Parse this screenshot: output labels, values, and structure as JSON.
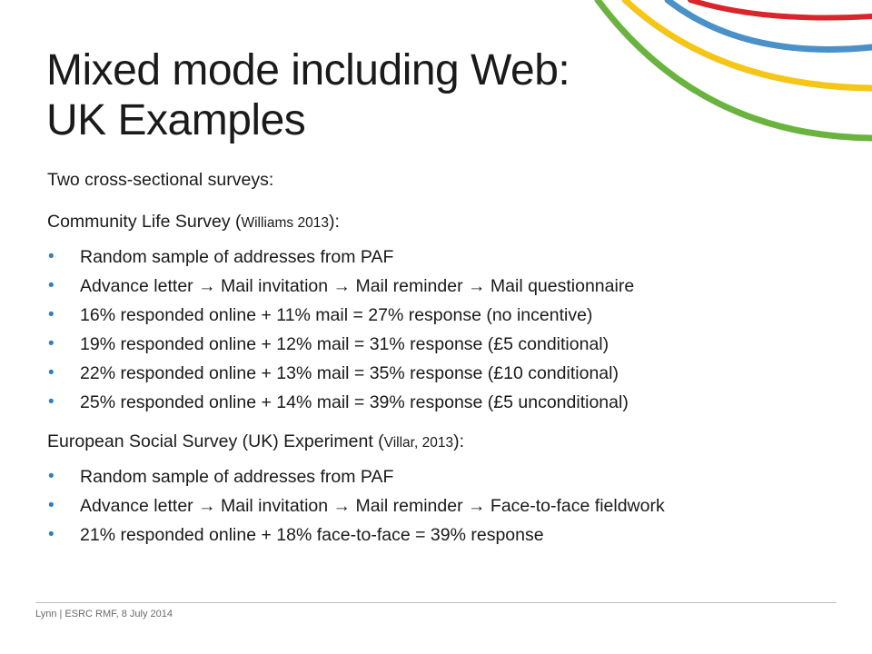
{
  "slide": {
    "title_line1": "Mixed mode including Web:",
    "title_line2": "UK Examples",
    "intro": "Two cross-sectional surveys:",
    "sections": [
      {
        "heading": "Community Life Survey (",
        "citation": "Williams 2013",
        "heading_suffix": "):",
        "bullets": [
          "Random sample of addresses from PAF",
          "Advance letter → Mail invitation → Mail reminder → Mail questionnaire",
          "16% responded online + 11% mail = 27% response (no incentive)",
          "19% responded online + 12% mail = 31% response (£5 conditional)",
          "22% responded online + 13% mail = 35% response (£10 conditional)",
          "25% responded online + 14% mail = 39% response (£5 unconditional)"
        ]
      },
      {
        "heading": "European Social Survey (UK) Experiment (",
        "citation": "Villar, 2013",
        "heading_suffix": "):",
        "bullets": [
          "Random sample of addresses from PAF",
          "Advance letter → Mail invitation → Mail reminder → Face-to-face fieldwork",
          "21% responded online + 18% face-to-face = 39% response"
        ]
      }
    ],
    "bullet_symbol": "•",
    "footer": "Lynn | ESRC RMF, 8 July 2014"
  },
  "colors": {
    "bullet": "#2f7fc1",
    "arc_blue": "#4a90c9",
    "arc_yellow": "#f5c518",
    "arc_green": "#6ab33e",
    "arc_red": "#d9262c"
  }
}
